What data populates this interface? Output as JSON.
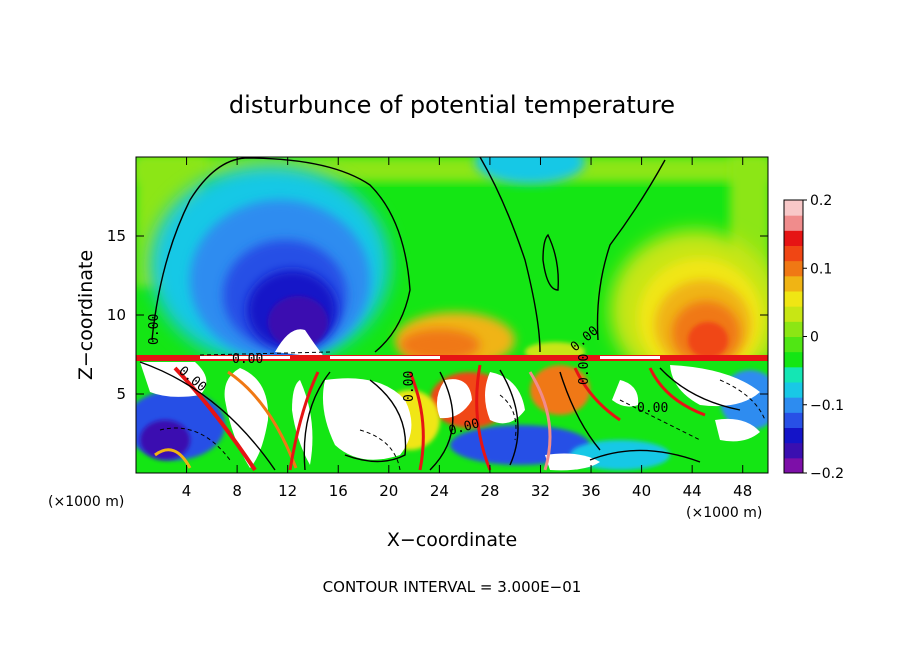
{
  "chart_data": {
    "type": "heatmap",
    "title": "disturbunce of potential temperature",
    "xlabel": "X−coordinate",
    "ylabel": "Z−coordinate",
    "x_unit": "(×1000 m)",
    "y_unit": "(×1000 m)",
    "footer": "CONTOUR INTERVAL = 3.000E−01",
    "xlim": [
      0,
      50
    ],
    "ylim": [
      0,
      20
    ],
    "x_ticks": [
      4,
      8,
      12,
      16,
      20,
      24,
      28,
      32,
      36,
      40,
      44,
      48
    ],
    "y_ticks": [
      5,
      10,
      15
    ],
    "colorbar": {
      "range": [
        -0.2,
        0.2
      ],
      "tick_values": [
        0.2,
        0.1,
        0,
        -0.1,
        -0.2
      ],
      "tick_labels": [
        "0.2",
        "0.1",
        "0",
        "−0.1",
        "−0.2"
      ],
      "colors": [
        "#7d0fa8",
        "#3a0fb0",
        "#1414c8",
        "#2850e6",
        "#2d8cf0",
        "#19c8e6",
        "#14e6b4",
        "#14e614",
        "#50e614",
        "#8ce614",
        "#c8e614",
        "#f0e614",
        "#f0b414",
        "#f07814",
        "#f04614",
        "#e61414",
        "#f08c8c",
        "#f8c8c8"
      ]
    },
    "contour_labels": [
      "0.00",
      "0.00",
      "0.00",
      "0.00",
      "0.00",
      "0.00",
      "0.00",
      "0.00"
    ],
    "fields": {
      "layer_boundary_z": 7.3,
      "upper_anomalies": [
        {
          "x": 11.5,
          "z": 11.0,
          "value": -0.19
        },
        {
          "x": 43.5,
          "z": 11.0,
          "value": 0.13
        },
        {
          "x": 25.5,
          "z": 9.0,
          "value": 0.08
        },
        {
          "x": 33.0,
          "z": 20.0,
          "value": -0.07
        }
      ]
    }
  }
}
